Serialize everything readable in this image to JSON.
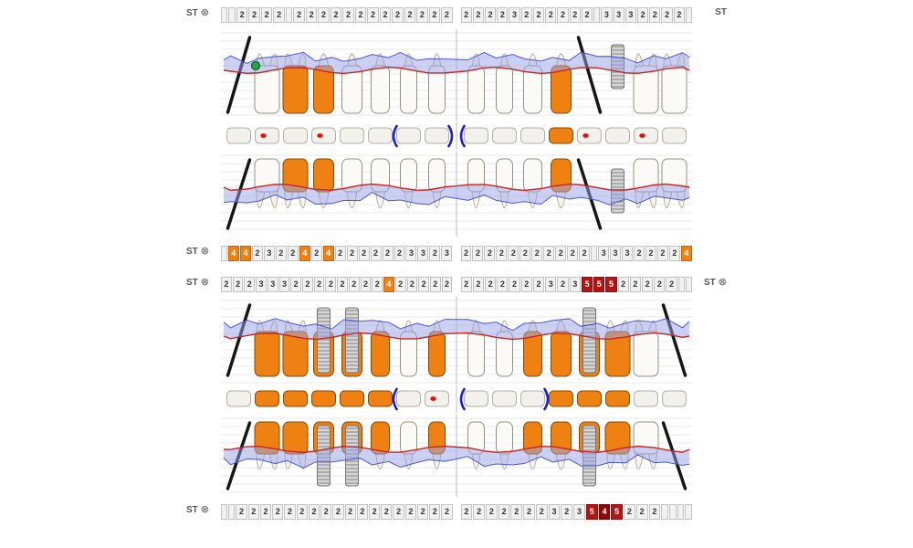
{
  "app": {
    "type": "periodontal-tooth-chart"
  },
  "labels": {
    "st": "ST",
    "st_icon": "⊗"
  },
  "cell_styles": {
    "o": "#ef8112",
    "r": "#b51414",
    "d": "#8e0a0a"
  },
  "colors": {
    "orange": "#ef8112",
    "orange_dark": "#8a4a00",
    "red_line": "#cc2222",
    "blue_band": "#9aa4e8",
    "blue_line": "#3d49c4",
    "bracket_blue": "#1a1ecb",
    "caries_red": "#e01010",
    "implant_gray": "#d6d6d6",
    "grid": "#e2e2e2",
    "midline": "#c4b2d4",
    "tooth_fill": "#fbfaf6",
    "tooth_stroke": "#94907f",
    "root_fill": "#f6f3ec",
    "marker_green": "#27a348"
  },
  "strips": [
    {
      "name": "maxilla-top",
      "left_label": "ST",
      "left_icon": true,
      "right_label": "ST",
      "right_icon": false,
      "left": [
        "",
        "",
        "2",
        "2",
        "2",
        "2",
        "",
        "2",
        "2",
        "2",
        "2",
        "2",
        "2",
        "2",
        "2",
        "2",
        "2",
        "2",
        "2",
        "2"
      ],
      "right": [
        "2",
        "2",
        "2",
        "2",
        "3",
        "2",
        "2",
        "2",
        "2",
        "2",
        "2",
        "",
        "3",
        "3",
        "3",
        "2",
        "2",
        "2",
        "2",
        ""
      ]
    },
    {
      "name": "maxilla-bottom",
      "left_label": "ST",
      "left_icon": true,
      "right_label": "",
      "right_icon": false,
      "left": [
        "",
        "o4",
        "o4",
        "2",
        "3",
        "2",
        "2",
        "o4",
        "2",
        "o4",
        "2",
        "2",
        "2",
        "2",
        "2",
        "2",
        "3",
        "3",
        "2",
        "3"
      ],
      "right": [
        "2",
        "2",
        "2",
        "2",
        "2",
        "2",
        "2",
        "2",
        "2",
        "2",
        "2",
        "",
        "3",
        "3",
        "3",
        "2",
        "2",
        "2",
        "2",
        "o4"
      ]
    },
    {
      "name": "mandible-top",
      "left_label": "ST",
      "left_icon": true,
      "right_label": "ST",
      "right_icon": true,
      "left": [
        "2",
        "2",
        "2",
        "3",
        "3",
        "3",
        "2",
        "2",
        "2",
        "2",
        "2",
        "2",
        "2",
        "2",
        "o4",
        "2",
        "2",
        "2",
        "2",
        "2"
      ],
      "right": [
        "2",
        "2",
        "2",
        "2",
        "2",
        "2",
        "2",
        "3",
        "2",
        "3",
        "r5",
        "r5",
        "r5",
        "2",
        "2",
        "2",
        "2",
        "2",
        "",
        ""
      ]
    },
    {
      "name": "mandible-bottom",
      "left_label": "ST",
      "left_icon": true,
      "right_label": "",
      "right_icon": false,
      "left": [
        "",
        "",
        "2",
        "2",
        "2",
        "2",
        "2",
        "2",
        "2",
        "2",
        "2",
        "2",
        "2",
        "2",
        "2",
        "2",
        "2",
        "2",
        "2",
        "2"
      ],
      "right": [
        "2",
        "2",
        "2",
        "2",
        "2",
        "2",
        "2",
        "3",
        "2",
        "3",
        "r5",
        "d4",
        "r5",
        "2",
        "2",
        "2",
        "",
        "",
        "",
        ""
      ]
    }
  ],
  "upper_teeth": [
    {
      "id": "18",
      "state": "missing"
    },
    {
      "id": "17",
      "state": "normal",
      "marker": "green-circle"
    },
    {
      "id": "16",
      "state": "crown"
    },
    {
      "id": "15",
      "state": "crown"
    },
    {
      "id": "14",
      "state": "normal"
    },
    {
      "id": "13",
      "state": "normal"
    },
    {
      "id": "12",
      "state": "normal"
    },
    {
      "id": "11",
      "state": "normal"
    },
    {
      "id": "21",
      "state": "normal"
    },
    {
      "id": "22",
      "state": "normal"
    },
    {
      "id": "23",
      "state": "normal"
    },
    {
      "id": "24",
      "state": "crown"
    },
    {
      "id": "25",
      "state": "missing"
    },
    {
      "id": "26",
      "state": "implant"
    },
    {
      "id": "27",
      "state": "normal"
    },
    {
      "id": "28",
      "state": "normal"
    }
  ],
  "lower_teeth": [
    {
      "id": "48",
      "state": "missing"
    },
    {
      "id": "47",
      "state": "crown"
    },
    {
      "id": "46",
      "state": "crown"
    },
    {
      "id": "45",
      "state": "implant-crown"
    },
    {
      "id": "44",
      "state": "implant-crown"
    },
    {
      "id": "43",
      "state": "crown"
    },
    {
      "id": "42",
      "state": "normal"
    },
    {
      "id": "41",
      "state": "crown"
    },
    {
      "id": "31",
      "state": "normal"
    },
    {
      "id": "32",
      "state": "normal"
    },
    {
      "id": "33",
      "state": "crown"
    },
    {
      "id": "34",
      "state": "crown"
    },
    {
      "id": "35",
      "state": "implant-crown"
    },
    {
      "id": "36",
      "state": "crown"
    },
    {
      "id": "37",
      "state": "normal"
    },
    {
      "id": "38",
      "state": "missing"
    }
  ],
  "upper_occlusal": [
    {
      "id": "18"
    },
    {
      "id": "17",
      "mark": "red"
    },
    {
      "id": "16"
    },
    {
      "id": "15",
      "mark": "red"
    },
    {
      "id": "14"
    },
    {
      "id": "13"
    },
    {
      "id": "12",
      "mark": "bracket-open"
    },
    {
      "id": "11",
      "mark": "bracket-close"
    },
    {
      "id": "21",
      "mark": "bracket-open"
    },
    {
      "id": "22"
    },
    {
      "id": "23"
    },
    {
      "id": "24",
      "fill": "orange"
    },
    {
      "id": "25",
      "mark": "red"
    },
    {
      "id": "26"
    },
    {
      "id": "27",
      "mark": "red"
    },
    {
      "id": "28"
    }
  ],
  "lower_occlusal": [
    {
      "id": "48"
    },
    {
      "id": "47",
      "fill": "orange"
    },
    {
      "id": "46",
      "fill": "orange"
    },
    {
      "id": "45",
      "fill": "orange"
    },
    {
      "id": "44",
      "fill": "orange"
    },
    {
      "id": "43",
      "fill": "orange"
    },
    {
      "id": "42",
      "mark": "bracket-open"
    },
    {
      "id": "41",
      "mark": "red"
    },
    {
      "id": "31",
      "mark": "bracket-open"
    },
    {
      "id": "32"
    },
    {
      "id": "33",
      "mark": "bracket-close"
    },
    {
      "id": "34",
      "fill": "orange"
    },
    {
      "id": "35",
      "fill": "orange"
    },
    {
      "id": "36",
      "fill": "orange"
    },
    {
      "id": "37"
    },
    {
      "id": "38"
    }
  ]
}
